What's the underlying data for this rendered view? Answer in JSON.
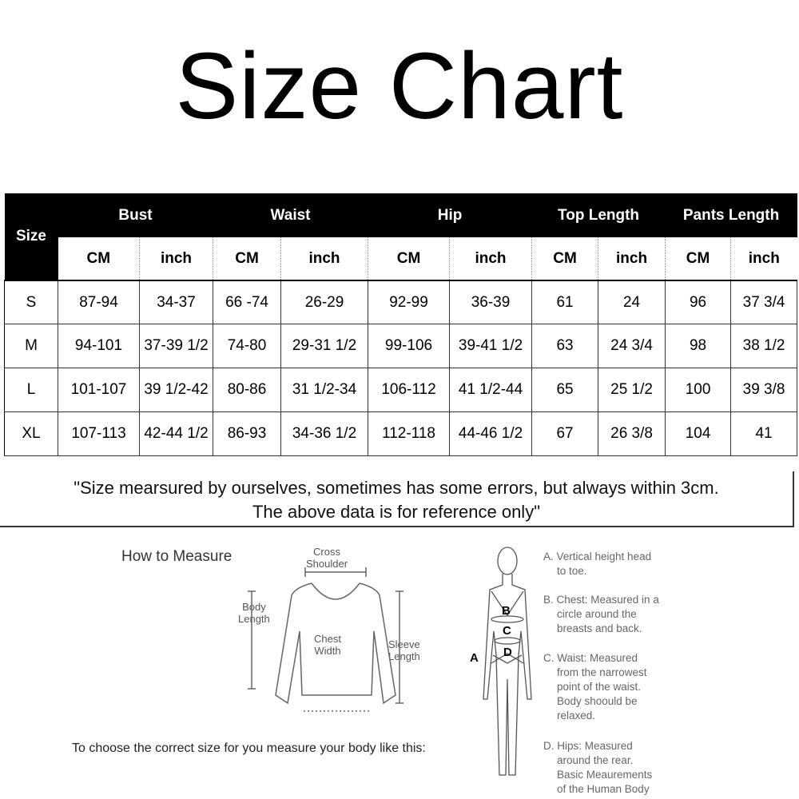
{
  "title": "Size Chart",
  "table": {
    "size_header": "Size",
    "groups": [
      "Bust",
      "Waist",
      "Hip",
      "Top Length",
      "Pants Length"
    ],
    "units": [
      "CM",
      "inch",
      "CM",
      "inch",
      "CM",
      "inch",
      "CM",
      "inch",
      "CM",
      "inch"
    ],
    "rows": [
      [
        "S",
        "87-94",
        "34-37",
        "66 -74",
        "26-29",
        "92-99",
        "36-39",
        "61",
        "24",
        "96",
        "37 3/4"
      ],
      [
        "M",
        "94-101",
        "37-39 1/2",
        "74-80",
        "29-31 1/2",
        "99-106",
        "39-41 1/2",
        "63",
        "24 3/4",
        "98",
        "38 1/2"
      ],
      [
        "L",
        "101-107",
        "39 1/2-42",
        "80-86",
        "31 1/2-34",
        "106-112",
        "41 1/2-44",
        "65",
        "25 1/2",
        "100",
        "39 3/8"
      ],
      [
        "XL",
        "107-113",
        "42-44 1/2",
        "86-93",
        "34-36 1/2",
        "112-118",
        "44-46 1/2",
        "67",
        "26 3/8",
        "104",
        "41"
      ]
    ]
  },
  "note": {
    "line1": "\"Size mearsured by ourselves, sometimes has some errors, but always within 3cm.",
    "line2": "The above data is for reference only\""
  },
  "measure": {
    "heading": "How to Measure",
    "cross_shoulder": [
      "Cross",
      "Shoulder"
    ],
    "body_length": [
      "Body",
      "Length"
    ],
    "chest_width": [
      "Chest",
      "Width"
    ],
    "sleeve_length": [
      "Sleeve",
      "Length"
    ],
    "instruction": "To choose the correct size for you measure your body like this:"
  },
  "body": {
    "labels": [
      "A",
      "B",
      "C",
      "D"
    ],
    "desc": [
      [
        "A. Vertical height head",
        "to toe."
      ],
      [
        "B. Chest: Measured in a",
        "circle around the",
        "breasts and back."
      ],
      [
        "C. Waist: Measured",
        "from the narrowest",
        "point of the waist.",
        "Body shoould be",
        "relaxed."
      ],
      [
        "D. Hips: Measured",
        "around the rear.",
        "Basic Meaurements",
        "of the Human Body"
      ]
    ]
  }
}
